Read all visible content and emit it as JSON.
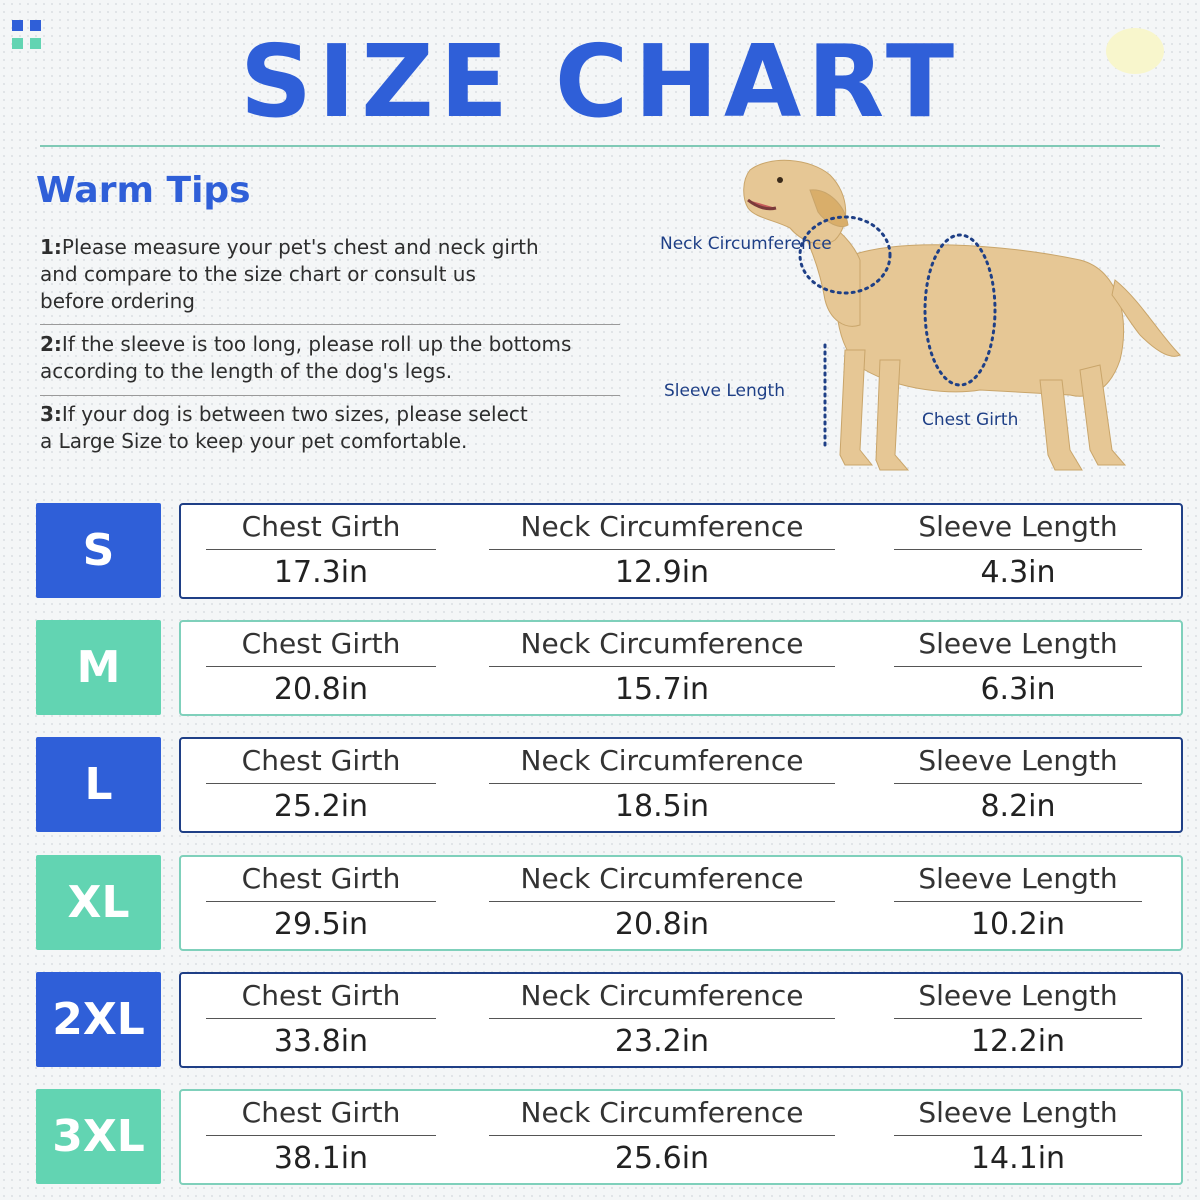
{
  "title": "SIZE CHART",
  "colors": {
    "blue": "#2f5fd8",
    "teal": "#62d4b2",
    "blue_border": "#1f3f86",
    "teal_border": "#7fd0bb"
  },
  "warm_tips": {
    "heading": "Warm Tips",
    "tips": [
      {
        "num": "1:",
        "text": "Please measure your pet's chest and neck girth",
        "line2": "and compare to the size chart or consult us",
        "line3": "before ordering"
      },
      {
        "num": "2:",
        "text": "If the sleeve is too long, please roll up the bottoms",
        "line2": "according to the length of the dog's legs.",
        "line3": ""
      },
      {
        "num": "3:",
        "text": "If your dog is between two sizes,  please select",
        "line2": "a Large Size to keep your pet comfortable.",
        "line3": ""
      }
    ]
  },
  "diagram": {
    "neck_label": "Neck Circumference",
    "sleeve_label": "Sleeve Length",
    "chest_label": "Chest Girth"
  },
  "headers": {
    "chest": "Chest Girth",
    "neck": "Neck Circumference",
    "sleeve": "Sleeve Length"
  },
  "sizes": [
    {
      "size": "S",
      "chest": "17.3in",
      "neck": "12.9in",
      "sleeve": "4.3in",
      "color": "blue"
    },
    {
      "size": "M",
      "chest": "20.8in",
      "neck": "15.7in",
      "sleeve": "6.3in",
      "color": "teal"
    },
    {
      "size": "L",
      "chest": "25.2in",
      "neck": "18.5in",
      "sleeve": "8.2in",
      "color": "blue"
    },
    {
      "size": "XL",
      "chest": "29.5in",
      "neck": "20.8in",
      "sleeve": "10.2in",
      "color": "teal"
    },
    {
      "size": "2XL",
      "chest": "33.8in",
      "neck": "23.2in",
      "sleeve": "12.2in",
      "color": "blue"
    },
    {
      "size": "3XL",
      "chest": "38.1in",
      "neck": "25.6in",
      "sleeve": "14.1in",
      "color": "teal"
    }
  ]
}
